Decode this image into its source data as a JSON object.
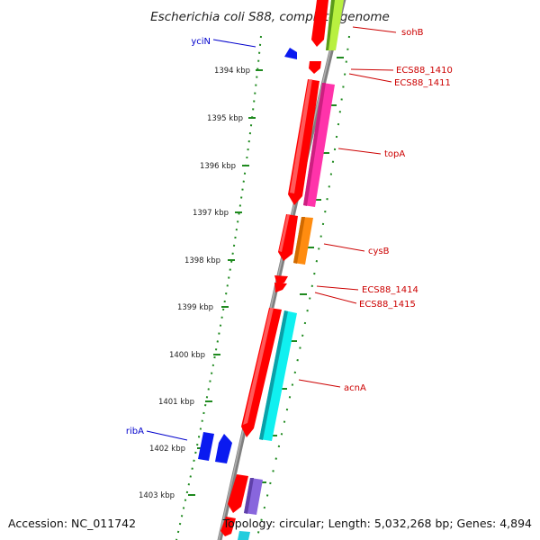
{
  "title": "Escherichia coli S88, complete genome",
  "footer": {
    "accession": "Accession: NC_011742",
    "summary": "Topology: circular; Length: 5,032,268 bp; Genes: 4,894"
  },
  "ruler_ticks": [
    "1394 kbp",
    "1395 kbp",
    "1396 kbp",
    "1397 kbp",
    "1398 kbp",
    "1399 kbp",
    "1400 kbp",
    "1401 kbp",
    "1402 kbp",
    "1403 kbp"
  ],
  "gene_labels": {
    "yciN": "yciN",
    "sohB": "sohB",
    "ECS88_1410": "ECS88_1410",
    "ECS88_1411": "ECS88_1411",
    "topA": "topA",
    "cysB": "cysB",
    "ECS88_1414": "ECS88_1414",
    "ECS88_1415": "ECS88_1415",
    "acnA": "acnA",
    "ribA": "ribA"
  },
  "colors": {
    "backbone": "#8c8c8c",
    "ruler": "#1f8a1f",
    "forward_label": "#0000cc",
    "reverse_label": "#cc0000",
    "cds_red": "#ff0000",
    "lime": "#b8f040",
    "magenta": "#ff33aa",
    "orange": "#ff8c10",
    "cyan": "#10f0f0",
    "blue": "#0a1af0",
    "purple": "#8866dd"
  }
}
